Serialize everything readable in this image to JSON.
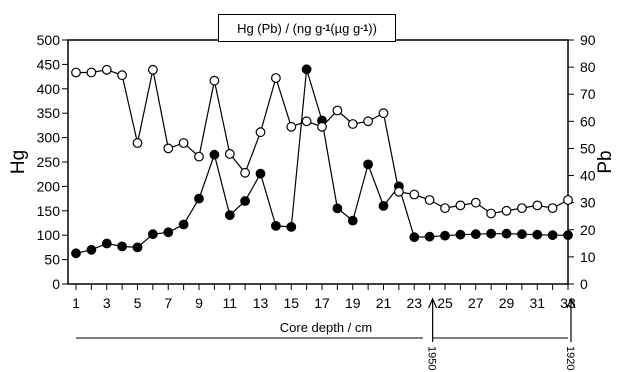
{
  "chart_data": {
    "type": "line",
    "title_parts": {
      "main": "Hg (Pb) / (ng g",
      "exp1": "-1",
      "mid": " (µg g",
      "exp2": "-1",
      "end": "))"
    },
    "xlabel": "Core depth / cm",
    "ylabel_left": "Hg",
    "ylabel_right": "Pb",
    "x": [
      1,
      2,
      3,
      4,
      5,
      6,
      7,
      8,
      9,
      10,
      11,
      12,
      13,
      14,
      15,
      16,
      17,
      18,
      19,
      20,
      21,
      22,
      23,
      24,
      25,
      26,
      27,
      28,
      29,
      30,
      31,
      32,
      33
    ],
    "x_tick_labels": [
      "1",
      "3",
      "5",
      "7",
      "9",
      "11",
      "13",
      "15",
      "17",
      "19",
      "21",
      "23",
      "25",
      "27",
      "29",
      "31",
      "33"
    ],
    "xlim": [
      1,
      33
    ],
    "ylim_left": [
      0,
      500
    ],
    "ylim_right": [
      0,
      90
    ],
    "yticks_left": [
      0,
      50,
      100,
      150,
      200,
      250,
      300,
      350,
      400,
      450,
      500
    ],
    "yticks_right": [
      0,
      10,
      20,
      30,
      40,
      50,
      60,
      70,
      80,
      90
    ],
    "series": [
      {
        "name": "Hg",
        "axis": "left",
        "marker": "filled-circle",
        "color": "#000000",
        "values": [
          63,
          70,
          83,
          77,
          75,
          102,
          106,
          122,
          175,
          265,
          141,
          170,
          226,
          119,
          117,
          440,
          335,
          155,
          130,
          245,
          160,
          200,
          96,
          97,
          99,
          101,
          102,
          103,
          103,
          102,
          101,
          100,
          100
        ]
      },
      {
        "name": "Pb",
        "axis": "right",
        "marker": "open-circle",
        "color": "#000000",
        "values": [
          78,
          78,
          79,
          77,
          52,
          79,
          50,
          52,
          47,
          75,
          48,
          41,
          56,
          76,
          58,
          60,
          58,
          64,
          59,
          60,
          63,
          34,
          33,
          31,
          28,
          29,
          30,
          26,
          27,
          28,
          29,
          28,
          31
        ]
      }
    ],
    "annotations": [
      {
        "label": "1950",
        "at_x": 24
      },
      {
        "label": "1920",
        "at_x": 33
      }
    ],
    "grid": false,
    "legend": "none"
  }
}
